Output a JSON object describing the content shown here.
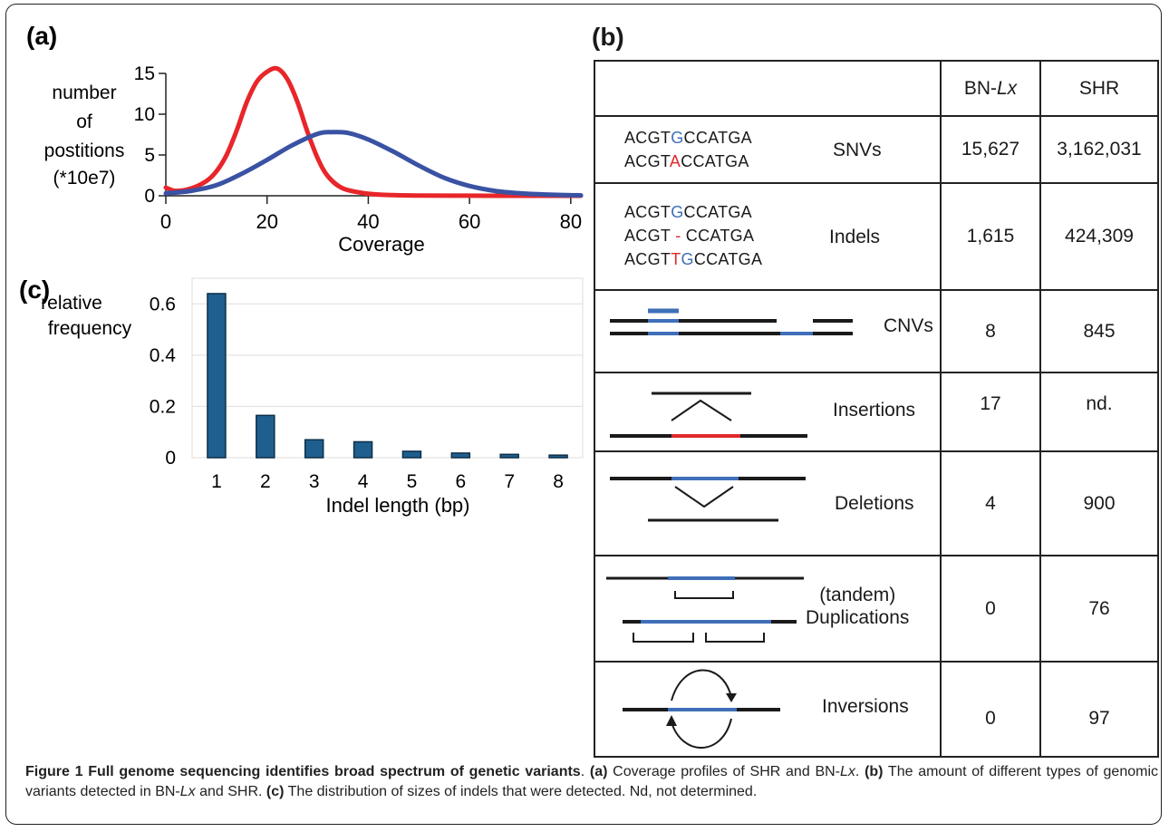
{
  "figure": {
    "panel_a_label": "(a)",
    "panel_b_label": "(b)",
    "panel_c_label": "(c)"
  },
  "panel_a": {
    "ylabel_lines": [
      "number",
      "of",
      "postitions",
      "(*10e7)"
    ],
    "xlabel": "Coverage",
    "colors": {
      "red_curve": "#e8262a",
      "blue_curve": "#3a52a3"
    }
  },
  "panel_c": {
    "ylabel_lines": [
      "relative",
      "frequency"
    ],
    "xlabel": "Indel length (bp)",
    "bar_color": "#1f5f8f"
  },
  "chart_data": [
    {
      "type": "line",
      "panel": "(a)",
      "xlabel": "Coverage",
      "ylabel": "number of postitions (*10e7)",
      "xlim": [
        0,
        82
      ],
      "ylim": [
        0,
        15
      ],
      "xticks": [
        "0",
        "20",
        "40",
        "60",
        "80"
      ],
      "yticks": [
        "0",
        "5",
        "10",
        "15"
      ],
      "grid": false,
      "series": [
        {
          "color": "#e8262a",
          "x": [
            0,
            2,
            5,
            8,
            10,
            12,
            14,
            16,
            18,
            20,
            22,
            24,
            26,
            28,
            30,
            32,
            35,
            40,
            45,
            50,
            60,
            70,
            82
          ],
          "y": [
            1.0,
            0.6,
            0.9,
            1.8,
            3.0,
            5.0,
            8.0,
            11.5,
            14.0,
            15.2,
            15.6,
            14.3,
            11.5,
            7.8,
            4.6,
            2.4,
            0.9,
            0.25,
            0.08,
            0.03,
            0.01,
            0,
            0
          ]
        },
        {
          "color": "#3a52a3",
          "x": [
            0,
            5,
            10,
            15,
            20,
            25,
            30,
            33,
            36,
            40,
            45,
            50,
            55,
            60,
            65,
            70,
            75,
            82
          ],
          "y": [
            0.3,
            0.6,
            1.3,
            2.7,
            4.4,
            6.2,
            7.6,
            7.8,
            7.7,
            6.9,
            5.4,
            3.7,
            2.2,
            1.2,
            0.6,
            0.3,
            0.15,
            0.05
          ]
        }
      ]
    },
    {
      "type": "bar",
      "panel": "(c)",
      "xlabel": "Indel length (bp)",
      "ylabel": "relative frequency",
      "categories": [
        "1",
        "2",
        "3",
        "4",
        "5",
        "6",
        "7",
        "8"
      ],
      "values": [
        0.64,
        0.165,
        0.07,
        0.062,
        0.025,
        0.018,
        0.013,
        0.01
      ],
      "ylim": [
        0,
        0.7
      ],
      "yticks": [
        "0",
        "0.2",
        "0.4",
        "0.6"
      ],
      "grid": true
    }
  ],
  "table": {
    "headers": [
      "",
      "BN-",
      "Lx",
      "SHR"
    ],
    "rows": [
      {
        "variant": "SNVs",
        "bn": "15,627",
        "shr": "3,162,031"
      },
      {
        "variant": "Indels",
        "bn": "1,615",
        "shr": "424,309"
      },
      {
        "variant": "CNVs",
        "bn": "8",
        "shr": "845"
      },
      {
        "variant": "Insertions",
        "bn": "17",
        "shr": "nd."
      },
      {
        "variant": "Deletions",
        "bn": "4",
        "shr": "900"
      },
      {
        "variant_line1": "(tandem)",
        "variant_line2": "Duplications",
        "bn": "0",
        "shr": "76"
      },
      {
        "variant": "Inversions",
        "bn": "0",
        "shr": "97"
      }
    ],
    "snv_seq": {
      "line1_pre": "ACGT",
      "line1_mid": "G",
      "line1_post": "CCATGA",
      "line2_pre": "ACGT",
      "line2_mid": "A",
      "line2_post": "CCATGA"
    },
    "indel_seq": {
      "line1_pre": "ACGT",
      "line1_mid": "G",
      "line1_post": "CCATGA",
      "line2_pre": "ACGT ",
      "line2_mid": "-",
      "line2_post": " CCATGA",
      "line3_pre": "ACGT",
      "line3_mid1": "T",
      "line3_mid2": "G",
      "line3_post": "CCATGA"
    },
    "colors": {
      "blue": "#3e6fb8",
      "red": "#e0282a",
      "line": "#1a1a1a"
    }
  },
  "caption": {
    "title": "Figure 1 Full genome sequencing identifies broad spectrum of genetic variants",
    "after_title": ". ",
    "a_ref": "(a)",
    "a_text_pre": " Coverage profiles of SHR and BN-",
    "lx1": "Lx",
    "a_text_post": ". ",
    "b_ref": "(b)",
    "b_text_pre": " The amount of different types of genomic variants detected in BN-",
    "lx2": "Lx",
    "b_text_post": " and SHR. ",
    "c_ref": "(c)",
    "c_text": " The distribution of sizes of indels that were detected. Nd, not determined."
  }
}
